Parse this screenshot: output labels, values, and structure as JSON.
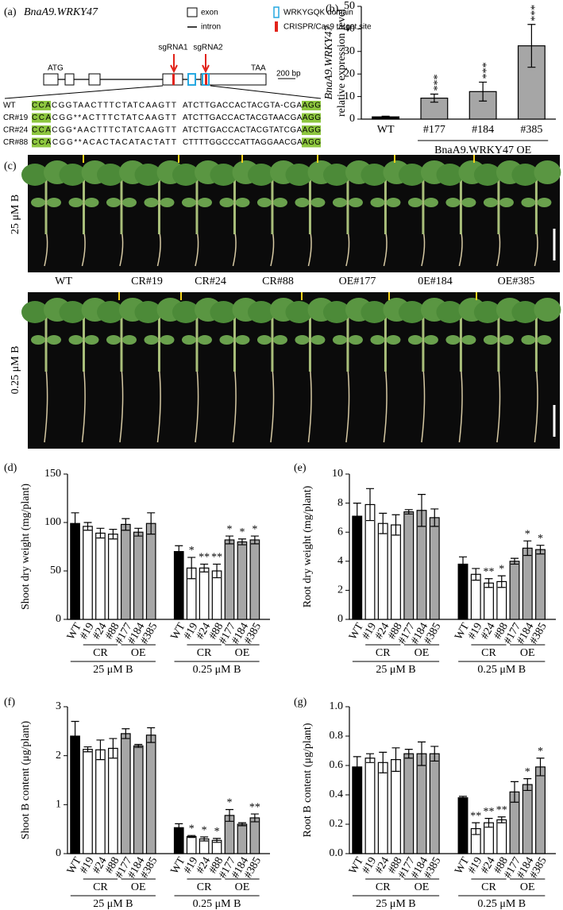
{
  "panel_a": {
    "label": "(a)",
    "gene": "BnaA9.WRKY47",
    "legend": [
      "exon",
      "WRKYGQK domain",
      "intron",
      "CRISPR/Cas9 target site"
    ],
    "sgrnas": [
      "sgRNA1",
      "sgRNA2"
    ],
    "start": "ATG",
    "stop": "TAA",
    "scale": "200 bp",
    "sequences": [
      {
        "name": "WT",
        "left": "CCACGGTAACTTTCTATCAAGTT",
        "right": "ATCTTGACCACTACGTA-CGAAGG"
      },
      {
        "name": "CR#19",
        "left": "CCACGG**ACTTTCTATCAAGTT",
        "right": "ATCTTGACCACTACGTAACGAAGG"
      },
      {
        "name": "CR#24",
        "left": "CCACGG*AACTTTCTATCAAGTT",
        "right": "ATCTTGACCACTACGTATCGAAGG"
      },
      {
        "name": "CR#88",
        "left": "CCACGG**ACACTACATACTATT",
        "right": "CTTTTGGCCCATTAGGAACGAAGG"
      }
    ]
  },
  "panel_c": {
    "label": "(c)",
    "conditions": [
      "25 μM B",
      "0.25 μM B"
    ],
    "lines": [
      "WT",
      "CR#19",
      "CR#24",
      "CR#88",
      "OE#177",
      "0E#184",
      "OE#385"
    ]
  },
  "chart_data": [
    {
      "type": "bar",
      "label": "(b)",
      "ylabel": [
        "BnaA9.WRKY47",
        "relative expression level"
      ],
      "categories": [
        "WT",
        "#177",
        "#184",
        "#385"
      ],
      "values": [
        1,
        9.3,
        12.2,
        32.5
      ],
      "errors": [
        0.3,
        1.8,
        4.2,
        9.5
      ],
      "colors": [
        "#000000",
        "#a6a6a6",
        "#a6a6a6",
        "#a6a6a6"
      ],
      "significance": [
        null,
        "***",
        "***",
        "***"
      ],
      "group_label": "BnaA9.WRKY47 OE",
      "ylim": [
        0,
        50
      ],
      "yticks": [
        0,
        10,
        20,
        30,
        40,
        50
      ]
    },
    {
      "type": "grouped-bar",
      "label": "(d)",
      "ylabel": "Shoot dry weight (mg/plant)",
      "categories": [
        "WT",
        "#19",
        "#24",
        "#88",
        "#177",
        "#184",
        "#385",
        "WT",
        "#19",
        "#24",
        "#88",
        "#177",
        "#184",
        "#385"
      ],
      "values": [
        99,
        96,
        89,
        88,
        98,
        90,
        99,
        70,
        53,
        53,
        50,
        82,
        80,
        82
      ],
      "errors": [
        11,
        4,
        5,
        5,
        6,
        4,
        11,
        6,
        11,
        4,
        7,
        4,
        3,
        4
      ],
      "colors": [
        "#000000",
        "#ffffff",
        "#ffffff",
        "#ffffff",
        "#a6a6a6",
        "#a6a6a6",
        "#a6a6a6",
        "#000000",
        "#ffffff",
        "#ffffff",
        "#ffffff",
        "#a6a6a6",
        "#a6a6a6",
        "#a6a6a6"
      ],
      "significance": [
        null,
        null,
        null,
        null,
        null,
        null,
        null,
        null,
        "*",
        "**",
        "**",
        "*",
        "*",
        "*"
      ],
      "groups": [
        {
          "label": "25 μM B",
          "subgroups": [
            "CR",
            "OE"
          ]
        },
        {
          "label": "0.25 μM B",
          "subgroups": [
            "CR",
            "OE"
          ]
        }
      ],
      "ylim": [
        0,
        150
      ],
      "yticks": [
        0,
        50,
        100,
        150
      ]
    },
    {
      "type": "grouped-bar",
      "label": "(e)",
      "ylabel": "Root dry weight (mg/plant)",
      "categories": [
        "WT",
        "#19",
        "#24",
        "#88",
        "#177",
        "#184",
        "#385",
        "WT",
        "#19",
        "#24",
        "#88",
        "#177",
        "#184",
        "#385"
      ],
      "values": [
        7.1,
        7.9,
        6.6,
        6.5,
        7.4,
        7.5,
        7.0,
        3.8,
        3.1,
        2.5,
        2.6,
        4.0,
        4.9,
        4.8
      ],
      "errors": [
        0.9,
        1.1,
        0.7,
        0.7,
        0.15,
        1.1,
        0.6,
        0.5,
        0.4,
        0.3,
        0.4,
        0.2,
        0.5,
        0.3
      ],
      "colors": [
        "#000000",
        "#ffffff",
        "#ffffff",
        "#ffffff",
        "#a6a6a6",
        "#a6a6a6",
        "#a6a6a6",
        "#000000",
        "#ffffff",
        "#ffffff",
        "#ffffff",
        "#a6a6a6",
        "#a6a6a6",
        "#a6a6a6"
      ],
      "significance": [
        null,
        null,
        null,
        null,
        null,
        null,
        null,
        null,
        null,
        "**",
        "*",
        null,
        "*",
        "*"
      ],
      "groups": [
        {
          "label": "25 μM B",
          "subgroups": [
            "CR",
            "OE"
          ]
        },
        {
          "label": "0.25 μM B",
          "subgroups": [
            "CR",
            "OE"
          ]
        }
      ],
      "ylim": [
        0,
        10
      ],
      "yticks": [
        0,
        2,
        4,
        6,
        8,
        10
      ]
    },
    {
      "type": "grouped-bar",
      "label": "(f)",
      "ylabel": "Shoot B content (μg/plant)",
      "categories": [
        "WT",
        "#19",
        "#24",
        "#88",
        "#177",
        "#184",
        "#385",
        "WT",
        "#19",
        "#24",
        "#88",
        "#177",
        "#184",
        "#385"
      ],
      "values": [
        2.4,
        2.13,
        2.12,
        2.15,
        2.45,
        2.2,
        2.42,
        0.53,
        0.35,
        0.3,
        0.27,
        0.78,
        0.6,
        0.73
      ],
      "errors": [
        0.3,
        0.05,
        0.2,
        0.2,
        0.1,
        0.03,
        0.15,
        0.08,
        0.02,
        0.04,
        0.04,
        0.12,
        0.03,
        0.08
      ],
      "colors": [
        "#000000",
        "#ffffff",
        "#ffffff",
        "#ffffff",
        "#a6a6a6",
        "#a6a6a6",
        "#a6a6a6",
        "#000000",
        "#ffffff",
        "#ffffff",
        "#ffffff",
        "#a6a6a6",
        "#a6a6a6",
        "#a6a6a6"
      ],
      "significance": [
        null,
        null,
        null,
        null,
        null,
        null,
        null,
        null,
        "*",
        "*",
        "*",
        "*",
        null,
        "**"
      ],
      "groups": [
        {
          "label": "25 μM B",
          "subgroups": [
            "CR",
            "OE"
          ]
        },
        {
          "label": "0.25 μM B",
          "subgroups": [
            "CR",
            "OE"
          ]
        }
      ],
      "ylim": [
        0,
        3
      ],
      "yticks": [
        0,
        1,
        2,
        3
      ]
    },
    {
      "type": "grouped-bar",
      "label": "(g)",
      "ylabel": "Root B content (μg/plant)",
      "categories": [
        "WT",
        "#19",
        "#24",
        "#88",
        "#177",
        "#184",
        "#385",
        "WT",
        "#19",
        "#24",
        "#88",
        "#177",
        "#184",
        "#385"
      ],
      "values": [
        0.59,
        0.65,
        0.62,
        0.64,
        0.68,
        0.68,
        0.68,
        0.38,
        0.17,
        0.21,
        0.23,
        0.42,
        0.47,
        0.59
      ],
      "errors": [
        0.07,
        0.03,
        0.07,
        0.08,
        0.03,
        0.08,
        0.05,
        0.01,
        0.04,
        0.03,
        0.02,
        0.07,
        0.04,
        0.06
      ],
      "colors": [
        "#000000",
        "#ffffff",
        "#ffffff",
        "#ffffff",
        "#a6a6a6",
        "#a6a6a6",
        "#a6a6a6",
        "#000000",
        "#ffffff",
        "#ffffff",
        "#ffffff",
        "#a6a6a6",
        "#a6a6a6",
        "#a6a6a6"
      ],
      "significance": [
        null,
        null,
        null,
        null,
        null,
        null,
        null,
        null,
        "**",
        "**",
        "**",
        null,
        "*",
        "*"
      ],
      "groups": [
        {
          "label": "25 μM B",
          "subgroups": [
            "CR",
            "OE"
          ]
        },
        {
          "label": "0.25 μM B",
          "subgroups": [
            "CR",
            "OE"
          ]
        }
      ],
      "ylim": [
        0,
        1
      ],
      "yticks": [
        {
          "value": 0,
          "label": "0.0"
        },
        0.2,
        0.4,
        0.6,
        0.8,
        {
          "value": 1,
          "label": "1.0"
        }
      ]
    }
  ]
}
